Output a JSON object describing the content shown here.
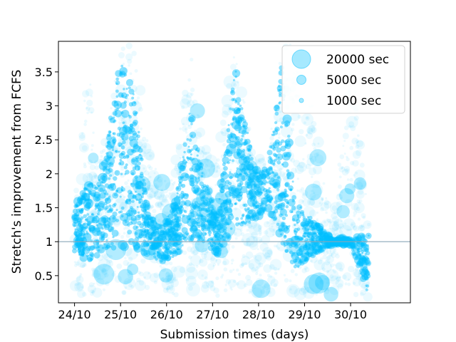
{
  "chart_data": {
    "type": "scatter",
    "title": "",
    "xlabel": "Submission times (days)",
    "ylabel": "Stretch's improvement from FCFS",
    "x_ticks": [
      "24/10",
      "25/10",
      "26/10",
      "27/10",
      "28/10",
      "29/10",
      "30/10"
    ],
    "xlim": [
      -0.35,
      7.3
    ],
    "ylim": [
      0.1,
      3.95
    ],
    "y_ticks": [
      0.5,
      1,
      1.5,
      2,
      2.5,
      3,
      3.5
    ],
    "y_tick_labels": [
      "0.5",
      "1",
      "1.5",
      "2",
      "2.5",
      "3",
      "3.5"
    ],
    "reference_line": {
      "y": 1,
      "color": "#8aa7b8"
    },
    "marker_color": "#00bfff",
    "marker_size_meaning": "job runtime in seconds",
    "legend": {
      "placement": "top-right",
      "entries": [
        {
          "label": "20000 sec",
          "size_sec": 20000
        },
        {
          "label": "5000 sec",
          "size_sec": 5000
        },
        {
          "label": "1000 sec",
          "size_sec": 1000
        }
      ]
    },
    "grid": false,
    "density_profile": [
      {
        "x": 0.0,
        "lo": 0.25,
        "hi": 1.8,
        "core_lo": 0.85,
        "core_hi": 1.5
      },
      {
        "x": 0.3,
        "lo": 0.2,
        "hi": 3.9,
        "core_lo": 0.7,
        "core_hi": 1.9
      },
      {
        "x": 0.5,
        "lo": 0.25,
        "hi": 2.2,
        "core_lo": 0.8,
        "core_hi": 1.8
      },
      {
        "x": 0.7,
        "lo": 0.3,
        "hi": 2.6,
        "core_lo": 0.9,
        "core_hi": 2.5
      },
      {
        "x": 1.0,
        "lo": 0.2,
        "hi": 3.9,
        "core_lo": 0.9,
        "core_hi": 3.7
      },
      {
        "x": 1.3,
        "lo": 0.3,
        "hi": 3.9,
        "core_lo": 0.9,
        "core_hi": 3.2
      },
      {
        "x": 1.6,
        "lo": 0.25,
        "hi": 2.4,
        "core_lo": 0.8,
        "core_hi": 1.4
      },
      {
        "x": 1.9,
        "lo": 0.3,
        "hi": 1.9,
        "core_lo": 0.7,
        "core_hi": 1.2
      },
      {
        "x": 2.2,
        "lo": 0.2,
        "hi": 2.2,
        "core_lo": 0.8,
        "core_hi": 1.6
      },
      {
        "x": 2.5,
        "lo": 0.3,
        "hi": 3.9,
        "core_lo": 1.0,
        "core_hi": 3.0
      },
      {
        "x": 2.8,
        "lo": 0.25,
        "hi": 2.4,
        "core_lo": 1.0,
        "core_hi": 2.0
      },
      {
        "x": 3.1,
        "lo": 0.2,
        "hi": 2.2,
        "core_lo": 0.8,
        "core_hi": 1.4
      },
      {
        "x": 3.5,
        "lo": 0.3,
        "hi": 3.9,
        "core_lo": 1.2,
        "core_hi": 3.6
      },
      {
        "x": 3.9,
        "lo": 0.2,
        "hi": 2.3,
        "core_lo": 1.3,
        "core_hi": 2.1
      },
      {
        "x": 4.2,
        "lo": 0.25,
        "hi": 2.2,
        "core_lo": 1.5,
        "core_hi": 2.1
      },
      {
        "x": 4.5,
        "lo": 0.2,
        "hi": 3.9,
        "core_lo": 1.0,
        "core_hi": 3.7
      },
      {
        "x": 4.8,
        "lo": 0.2,
        "hi": 3.9,
        "core_lo": 0.6,
        "core_hi": 1.6
      },
      {
        "x": 5.2,
        "lo": 0.15,
        "hi": 3.0,
        "core_lo": 0.8,
        "core_hi": 1.3
      },
      {
        "x": 5.6,
        "lo": 0.2,
        "hi": 1.2,
        "core_lo": 0.95,
        "core_hi": 1.05
      },
      {
        "x": 6.0,
        "lo": 0.25,
        "hi": 3.9,
        "core_lo": 0.95,
        "core_hi": 1.05
      },
      {
        "x": 6.4,
        "lo": 0.1,
        "hi": 1.3,
        "core_lo": 0.2,
        "core_hi": 1.1
      }
    ]
  }
}
